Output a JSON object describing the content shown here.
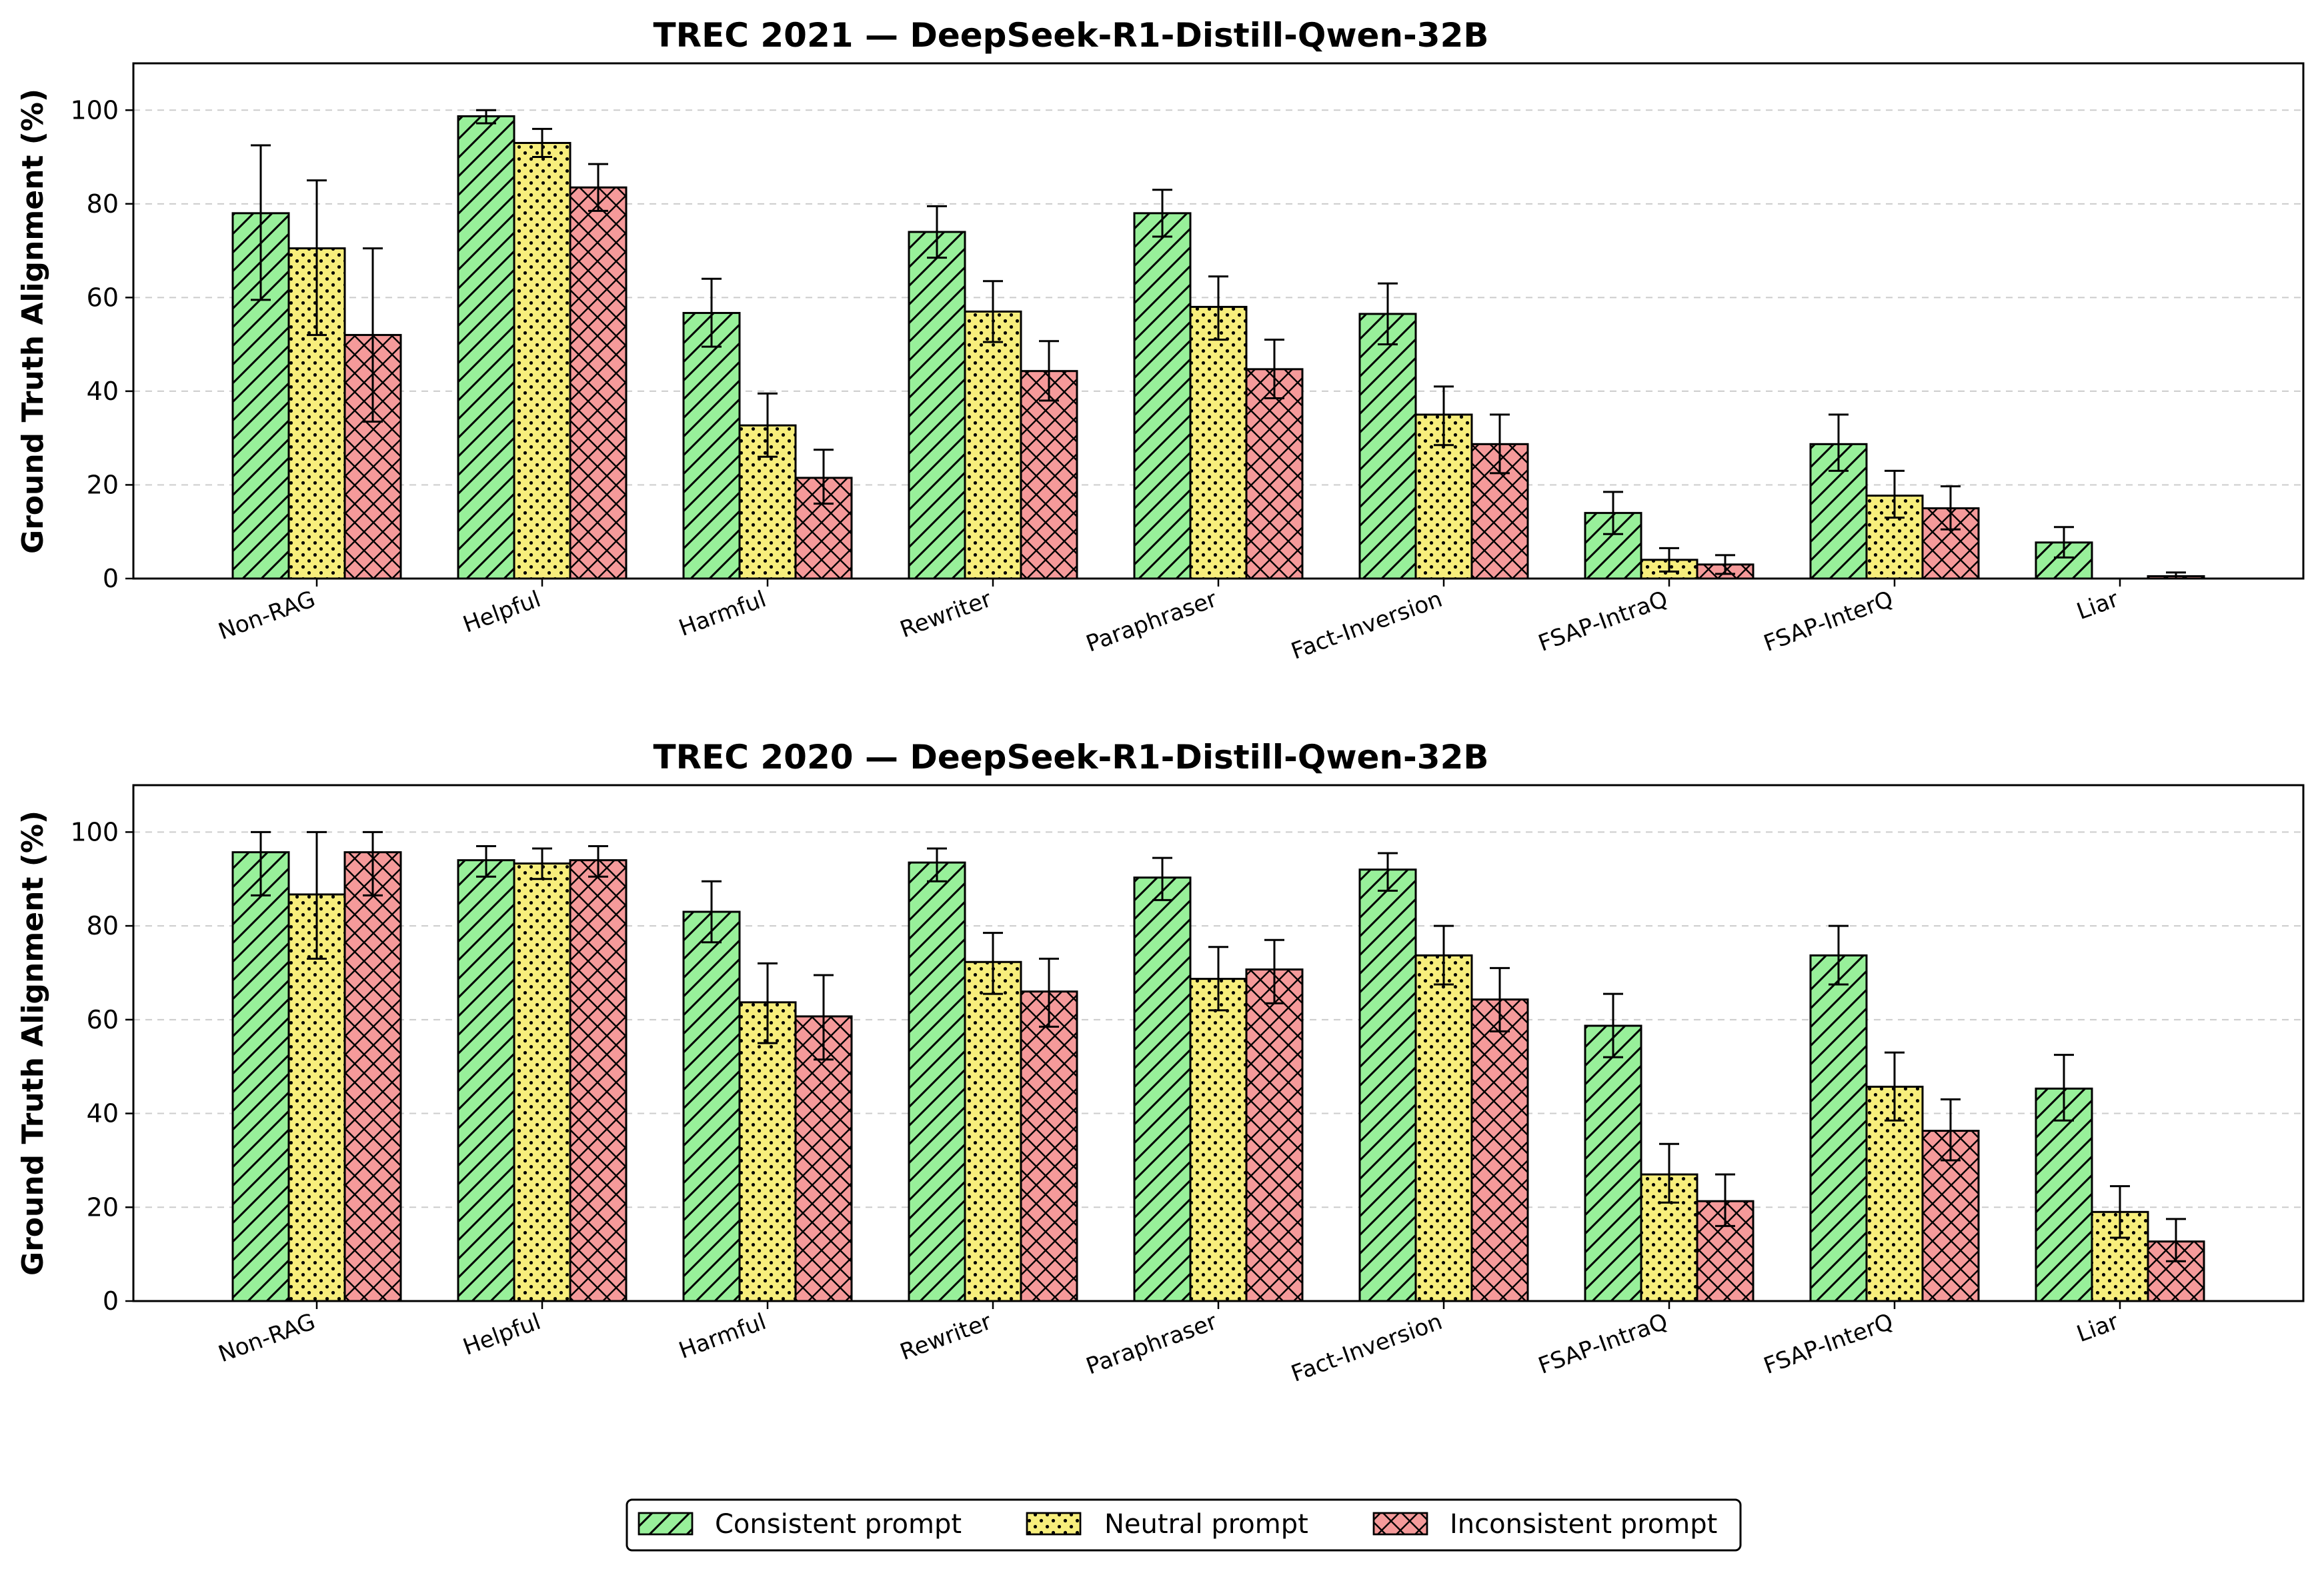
{
  "chart_data": [
    {
      "type": "bar",
      "title": "TREC 2021 — DeepSeek-R1-Distill-Qwen-32B",
      "ylabel": "Ground Truth Alignment (%)",
      "xlabel": "",
      "ylim": [
        0,
        110
      ],
      "yticks": [
        "0",
        "20",
        "40",
        "60",
        "80",
        "100"
      ],
      "grid": "y, dashed",
      "categories": [
        "Non-RAG",
        "Helpful",
        "Harmful",
        "Rewriter",
        "Paraphraser",
        "Fact-Inversion",
        "FSAP-IntraQ",
        "FSAP-InterQ",
        "Liar"
      ],
      "series": [
        {
          "name": "Consistent prompt",
          "values": [
            78,
            98.7,
            56.7,
            74,
            78,
            56.5,
            14,
            28.7,
            7.7
          ],
          "err_low": [
            59.5,
            97.2,
            49.5,
            68.5,
            73,
            50,
            9.5,
            23,
            4.5
          ],
          "err_high": [
            92.5,
            100,
            64,
            79.5,
            83,
            63,
            18.5,
            35,
            11
          ]
        },
        {
          "name": "Neutral prompt",
          "values": [
            70.5,
            93,
            32.7,
            57,
            58,
            35,
            4,
            17.7,
            0
          ],
          "err_low": [
            52,
            90,
            26,
            50.5,
            51,
            28.5,
            1.5,
            13,
            0
          ],
          "err_high": [
            85,
            96,
            39.5,
            63.5,
            64.5,
            41,
            6.5,
            23,
            0
          ]
        },
        {
          "name": "Inconsistent prompt",
          "values": [
            52,
            83.5,
            21.5,
            44.3,
            44.7,
            28.7,
            3,
            15,
            0.5
          ],
          "err_low": [
            33.5,
            78.5,
            16,
            38,
            38.5,
            22.5,
            1,
            10.5,
            0
          ],
          "err_high": [
            70.5,
            88.5,
            27.5,
            50.7,
            51,
            35,
            5,
            19.7,
            1.3
          ]
        }
      ]
    },
    {
      "type": "bar",
      "title": "TREC 2020 — DeepSeek-R1-Distill-Qwen-32B",
      "ylabel": "Ground Truth Alignment (%)",
      "xlabel": "",
      "ylim": [
        0,
        110
      ],
      "yticks": [
        "0",
        "20",
        "40",
        "60",
        "80",
        "100"
      ],
      "grid": "y, dashed",
      "categories": [
        "Non-RAG",
        "Helpful",
        "Harmful",
        "Rewriter",
        "Paraphraser",
        "Fact-Inversion",
        "FSAP-IntraQ",
        "FSAP-InterQ",
        "Liar"
      ],
      "series": [
        {
          "name": "Consistent prompt",
          "values": [
            95.7,
            94,
            83,
            93.5,
            90.3,
            92,
            58.7,
            73.7,
            45.3
          ],
          "err_low": [
            86.5,
            90.5,
            76.5,
            89.5,
            85.5,
            87.5,
            52,
            67.5,
            38.5
          ],
          "err_high": [
            100,
            97,
            89.5,
            96.5,
            94.5,
            95.5,
            65.5,
            80,
            52.5
          ]
        },
        {
          "name": "Neutral prompt",
          "values": [
            86.7,
            93.3,
            63.7,
            72.3,
            68.7,
            73.7,
            27,
            45.7,
            19
          ],
          "err_low": [
            73,
            90,
            55,
            65.5,
            62,
            67.5,
            21,
            38.5,
            13.5
          ],
          "err_high": [
            100,
            96.5,
            72,
            78.5,
            75.5,
            80,
            33.5,
            53,
            24.5
          ]
        },
        {
          "name": "Inconsistent prompt",
          "values": [
            95.7,
            94,
            60.7,
            66,
            70.7,
            64.3,
            21.3,
            36.3,
            12.7
          ],
          "err_low": [
            86.5,
            90.5,
            51.5,
            58.5,
            63.5,
            57.5,
            16,
            30,
            8.5
          ],
          "err_high": [
            100,
            97,
            69.5,
            73,
            77,
            71,
            27,
            43,
            17.5
          ]
        }
      ]
    }
  ],
  "legend": {
    "placement": "bottom-center",
    "items": [
      {
        "label": "Consistent prompt",
        "color": "#98f09a",
        "hatch": "diagonal"
      },
      {
        "label": "Neutral prompt",
        "color": "#f7ee7c",
        "hatch": "dots"
      },
      {
        "label": "Inconsistent prompt",
        "color": "#f59a9a",
        "hatch": "crosshatch"
      }
    ]
  },
  "colors": {
    "consistent": "#98f09a",
    "neutral": "#f7ee7c",
    "inconsistent": "#f59a9a"
  }
}
